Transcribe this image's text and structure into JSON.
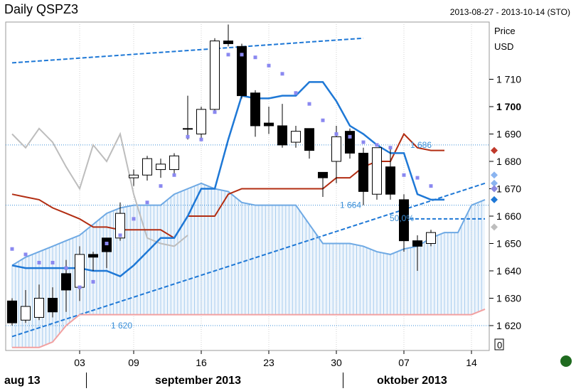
{
  "header": {
    "title": "Daily QSPZ3",
    "date_range": "2013-08-27 - 2013-10-14 (STO)"
  },
  "chart_data": {
    "type": "candlestick",
    "title": "Daily QSPZ3",
    "subtitle": "2013-08-27 - 2013-10-14 (STO)",
    "ylabel": [
      "Price",
      "USD"
    ],
    "ylim": [
      1614,
      1722
    ],
    "y_ticks": [
      {
        "value": 1620,
        "label": "1 620"
      },
      {
        "value": 1630,
        "label": "1 630"
      },
      {
        "value": 1640,
        "label": "1 640"
      },
      {
        "value": 1650,
        "label": "1 650"
      },
      {
        "value": 1660,
        "label": "1 660"
      },
      {
        "value": 1670,
        "label": "1 670"
      },
      {
        "value": 1680,
        "label": "1 680"
      },
      {
        "value": 1690,
        "label": "1 690"
      },
      {
        "value": 1700,
        "label": "1 700",
        "bold": true
      },
      {
        "value": 1710,
        "label": "1 710"
      }
    ],
    "x_ticks": [
      {
        "label": "03",
        "day_index": 5
      },
      {
        "label": "09",
        "day_index": 9
      },
      {
        "label": "16",
        "day_index": 14
      },
      {
        "label": "23",
        "day_index": 19
      },
      {
        "label": "30",
        "day_index": 24
      },
      {
        "label": "07",
        "day_index": 29
      },
      {
        "label": "14",
        "day_index": 34
      }
    ],
    "months": [
      {
        "label": "aug 13",
        "day_index": 0.5
      },
      {
        "label": "september 2013",
        "day_index": 14
      },
      {
        "label": "oktober 2013",
        "day_index": 30
      }
    ],
    "month_separators": [
      5.5,
      24.5
    ],
    "candles": [
      {
        "o": 1629,
        "h": 1630,
        "l": 1620,
        "c": 1621
      },
      {
        "o": 1622,
        "h": 1633,
        "l": 1621,
        "c": 1627
      },
      {
        "o": 1623,
        "h": 1635,
        "l": 1622,
        "c": 1630
      },
      {
        "o": 1630,
        "h": 1634,
        "l": 1623,
        "c": 1625
      },
      {
        "o": 1639,
        "h": 1644,
        "l": 1625,
        "c": 1633
      },
      {
        "o": 1634,
        "h": 1649,
        "l": 1629,
        "c": 1646
      },
      {
        "o": 1646,
        "h": 1647,
        "l": 1640,
        "c": 1645
      },
      {
        "o": 1652,
        "h": 1652,
        "l": 1641,
        "c": 1647
      },
      {
        "o": 1652,
        "h": 1665,
        "l": 1651,
        "c": 1661
      },
      {
        "o": 1674,
        "h": 1677,
        "l": 1671,
        "c": 1675
      },
      {
        "o": 1675,
        "h": 1682,
        "l": 1673,
        "c": 1681
      },
      {
        "o": 1677,
        "h": 1681,
        "l": 1674,
        "c": 1679
      },
      {
        "o": 1677,
        "h": 1683,
        "l": 1675,
        "c": 1682
      },
      {
        "o": 1692,
        "h": 1704,
        "l": 1688,
        "c": 1692
      },
      {
        "o": 1690,
        "h": 1700,
        "l": 1688,
        "c": 1699
      },
      {
        "o": 1699,
        "h": 1725,
        "l": 1698,
        "c": 1724
      },
      {
        "o": 1724,
        "h": 1730,
        "l": 1722,
        "c": 1723
      },
      {
        "o": 1722,
        "h": 1723,
        "l": 1703,
        "c": 1704
      },
      {
        "o": 1705,
        "h": 1706,
        "l": 1689,
        "c": 1693
      },
      {
        "o": 1694,
        "h": 1700,
        "l": 1690,
        "c": 1693
      },
      {
        "o": 1693,
        "h": 1701,
        "l": 1685,
        "c": 1686
      },
      {
        "o": 1687,
        "h": 1693,
        "l": 1685,
        "c": 1691
      },
      {
        "o": 1692,
        "h": 1692,
        "l": 1681,
        "c": 1684
      },
      {
        "o": 1676,
        "h": 1676,
        "l": 1667,
        "c": 1674
      },
      {
        "o": 1680,
        "h": 1693,
        "l": 1672,
        "c": 1689
      },
      {
        "o": 1691,
        "h": 1692,
        "l": 1681,
        "c": 1683
      },
      {
        "o": 1683,
        "h": 1685,
        "l": 1664,
        "c": 1669
      },
      {
        "o": 1668,
        "h": 1685,
        "l": 1666,
        "c": 1685
      },
      {
        "o": 1678,
        "h": 1685,
        "l": 1666,
        "c": 1668
      },
      {
        "o": 1666,
        "h": 1668,
        "l": 1647,
        "c": 1651
      },
      {
        "o": 1651,
        "h": 1653,
        "l": 1640,
        "c": 1649
      },
      {
        "o": 1650,
        "h": 1655,
        "l": 1649,
        "c": 1654
      }
    ],
    "lines": {
      "kijun": {
        "color": "#1e78d6",
        "points": [
          [
            0,
            1642
          ],
          [
            1,
            1641
          ],
          [
            2,
            1641
          ],
          [
            3,
            1641
          ],
          [
            4,
            1641
          ],
          [
            5,
            1641
          ],
          [
            6,
            1640
          ],
          [
            7,
            1640
          ],
          [
            8,
            1638
          ],
          [
            9,
            1642
          ],
          [
            10,
            1647
          ],
          [
            11,
            1652
          ],
          [
            12,
            1652
          ],
          [
            13,
            1660
          ],
          [
            14,
            1670
          ],
          [
            15,
            1670
          ],
          [
            16,
            1688
          ],
          [
            17,
            1704
          ],
          [
            18,
            1703
          ],
          [
            19,
            1703
          ],
          [
            20,
            1704
          ],
          [
            21,
            1704
          ],
          [
            22,
            1709
          ],
          [
            23,
            1709
          ],
          [
            24,
            1702
          ],
          [
            25,
            1693
          ],
          [
            26,
            1690
          ],
          [
            27,
            1686
          ],
          [
            28,
            1683
          ],
          [
            29,
            1683
          ],
          [
            30,
            1668
          ],
          [
            31,
            1666
          ],
          [
            32,
            1666
          ]
        ]
      },
      "tenkan": {
        "color": "#b22d12",
        "points": [
          [
            0,
            1668
          ],
          [
            1,
            1667
          ],
          [
            2,
            1666
          ],
          [
            3,
            1663
          ],
          [
            4,
            1661
          ],
          [
            5,
            1659
          ],
          [
            6,
            1656
          ],
          [
            7,
            1656
          ],
          [
            8,
            1655
          ],
          [
            9,
            1655
          ],
          [
            10,
            1655
          ],
          [
            11,
            1655
          ],
          [
            12,
            1652
          ],
          [
            13,
            1660
          ],
          [
            14,
            1660
          ],
          [
            15,
            1660
          ],
          [
            16,
            1668
          ],
          [
            17,
            1670
          ],
          [
            18,
            1670
          ],
          [
            19,
            1670
          ],
          [
            20,
            1670
          ],
          [
            21,
            1670
          ],
          [
            22,
            1670
          ],
          [
            23,
            1670
          ],
          [
            24,
            1674
          ],
          [
            25,
            1674
          ],
          [
            26,
            1678
          ],
          [
            27,
            1680
          ],
          [
            28,
            1680
          ],
          [
            29,
            1690
          ],
          [
            30,
            1685
          ],
          [
            31,
            1684
          ],
          [
            32,
            1684
          ]
        ]
      },
      "chikou": {
        "color": "#bdbdbd",
        "points": [
          [
            0,
            1690
          ],
          [
            1,
            1685
          ],
          [
            2,
            1692
          ],
          [
            3,
            1687
          ],
          [
            4,
            1678
          ],
          [
            5,
            1670
          ],
          [
            6,
            1686
          ],
          [
            7,
            1680
          ],
          [
            8,
            1690
          ],
          [
            9,
            1668
          ],
          [
            10,
            1652
          ],
          [
            11,
            1650
          ],
          [
            12,
            1649
          ],
          [
            13,
            1653
          ]
        ]
      },
      "span_a": {
        "color": "#6ea9e4",
        "points": [
          [
            0,
            1642
          ],
          [
            1,
            1645
          ],
          [
            2,
            1647
          ],
          [
            3,
            1649
          ],
          [
            4,
            1651
          ],
          [
            5,
            1653
          ],
          [
            6,
            1657
          ],
          [
            7,
            1661
          ],
          [
            8,
            1663
          ],
          [
            9,
            1664
          ],
          [
            10,
            1664
          ],
          [
            11,
            1664
          ],
          [
            12,
            1668
          ],
          [
            13,
            1670
          ],
          [
            14,
            1672
          ],
          [
            15,
            1670
          ],
          [
            16,
            1669
          ],
          [
            17,
            1665
          ],
          [
            18,
            1664
          ],
          [
            19,
            1664
          ],
          [
            20,
            1664
          ],
          [
            21,
            1664
          ],
          [
            22,
            1657
          ],
          [
            23,
            1650
          ],
          [
            24,
            1650
          ],
          [
            25,
            1650
          ],
          [
            26,
            1649
          ],
          [
            27,
            1647
          ],
          [
            28,
            1646
          ],
          [
            29,
            1648
          ],
          [
            30,
            1649
          ],
          [
            31,
            1652
          ],
          [
            32,
            1654
          ],
          [
            33,
            1654
          ],
          [
            34,
            1664
          ],
          [
            35,
            1666
          ]
        ]
      },
      "span_b_floor": {
        "color": "#f2a0a0",
        "points": [
          [
            0,
            1612
          ],
          [
            1,
            1612
          ],
          [
            2,
            1612
          ],
          [
            3,
            1614
          ],
          [
            4,
            1620
          ],
          [
            5,
            1624
          ],
          [
            6,
            1624
          ],
          [
            7,
            1624
          ],
          [
            8,
            1624
          ],
          [
            9,
            1624
          ],
          [
            10,
            1624
          ],
          [
            11,
            1624
          ],
          [
            12,
            1624
          ],
          [
            13,
            1624
          ],
          [
            14,
            1624
          ],
          [
            15,
            1624
          ],
          [
            16,
            1624
          ],
          [
            17,
            1624
          ],
          [
            18,
            1624
          ],
          [
            19,
            1624
          ],
          [
            20,
            1624
          ],
          [
            21,
            1624
          ],
          [
            22,
            1624
          ],
          [
            23,
            1624
          ],
          [
            24,
            1624
          ],
          [
            25,
            1624
          ],
          [
            26,
            1624
          ],
          [
            27,
            1624
          ],
          [
            28,
            1624
          ],
          [
            29,
            1624
          ],
          [
            30,
            1624
          ],
          [
            31,
            1624
          ],
          [
            32,
            1624
          ],
          [
            33,
            1624
          ],
          [
            34,
            1624
          ],
          [
            35,
            1626
          ]
        ]
      }
    },
    "dots": [
      [
        0,
        1648
      ],
      [
        1,
        1646
      ],
      [
        2,
        1643
      ],
      [
        3,
        1643
      ],
      [
        4,
        1641
      ],
      [
        5,
        1634
      ],
      [
        6,
        1636
      ],
      [
        7,
        1650
      ],
      [
        8,
        1653
      ],
      [
        9,
        1659
      ],
      [
        10,
        1665
      ],
      [
        11,
        1671
      ],
      [
        12,
        1675
      ],
      [
        13,
        1689
      ],
      [
        14,
        1688
      ],
      [
        15,
        1698
      ],
      [
        16,
        1719
      ],
      [
        17,
        1719
      ],
      [
        18,
        1718
      ],
      [
        19,
        1715
      ],
      [
        20,
        1712
      ],
      [
        21,
        1705
      ],
      [
        22,
        1701
      ],
      [
        23,
        1695
      ],
      [
        24,
        1690
      ],
      [
        25,
        1689
      ],
      [
        26,
        1687
      ],
      [
        27,
        1686
      ],
      [
        28,
        1685
      ],
      [
        29,
        1675
      ],
      [
        30,
        1674
      ],
      [
        31,
        1671
      ]
    ],
    "trendlines": [
      {
        "from": [
          0,
          1716
        ],
        "to": [
          26,
          1725
        ],
        "color": "#1e78d6"
      },
      {
        "from": [
          0,
          1616
        ],
        "to": [
          35,
          1672
        ],
        "color": "#1e78d6"
      }
    ],
    "levels": [
      {
        "value": 1686,
        "label": "1 686"
      },
      {
        "value": 1664,
        "label": "1 664"
      },
      {
        "value": 1620,
        "label": "1 620"
      }
    ],
    "fib": {
      "value": 1659,
      "label": "50,0%",
      "from": 29,
      "to": 35
    },
    "right_markers": [
      {
        "value": 1684,
        "shape": "diamond",
        "color": "#c0392b"
      },
      {
        "value": 1675,
        "shape": "diamond",
        "color": "#8ab4f0"
      },
      {
        "value": 1672,
        "shape": "diamond",
        "color": "#8ab4f0"
      },
      {
        "value": 1670,
        "shape": "diamond",
        "color": "#8a88e0"
      },
      {
        "value": 1666,
        "shape": "diamond",
        "color": "#1e78d6"
      },
      {
        "value": 1656,
        "shape": "diamond",
        "color": "#bdbdbd"
      }
    ],
    "corner_label": "0"
  }
}
